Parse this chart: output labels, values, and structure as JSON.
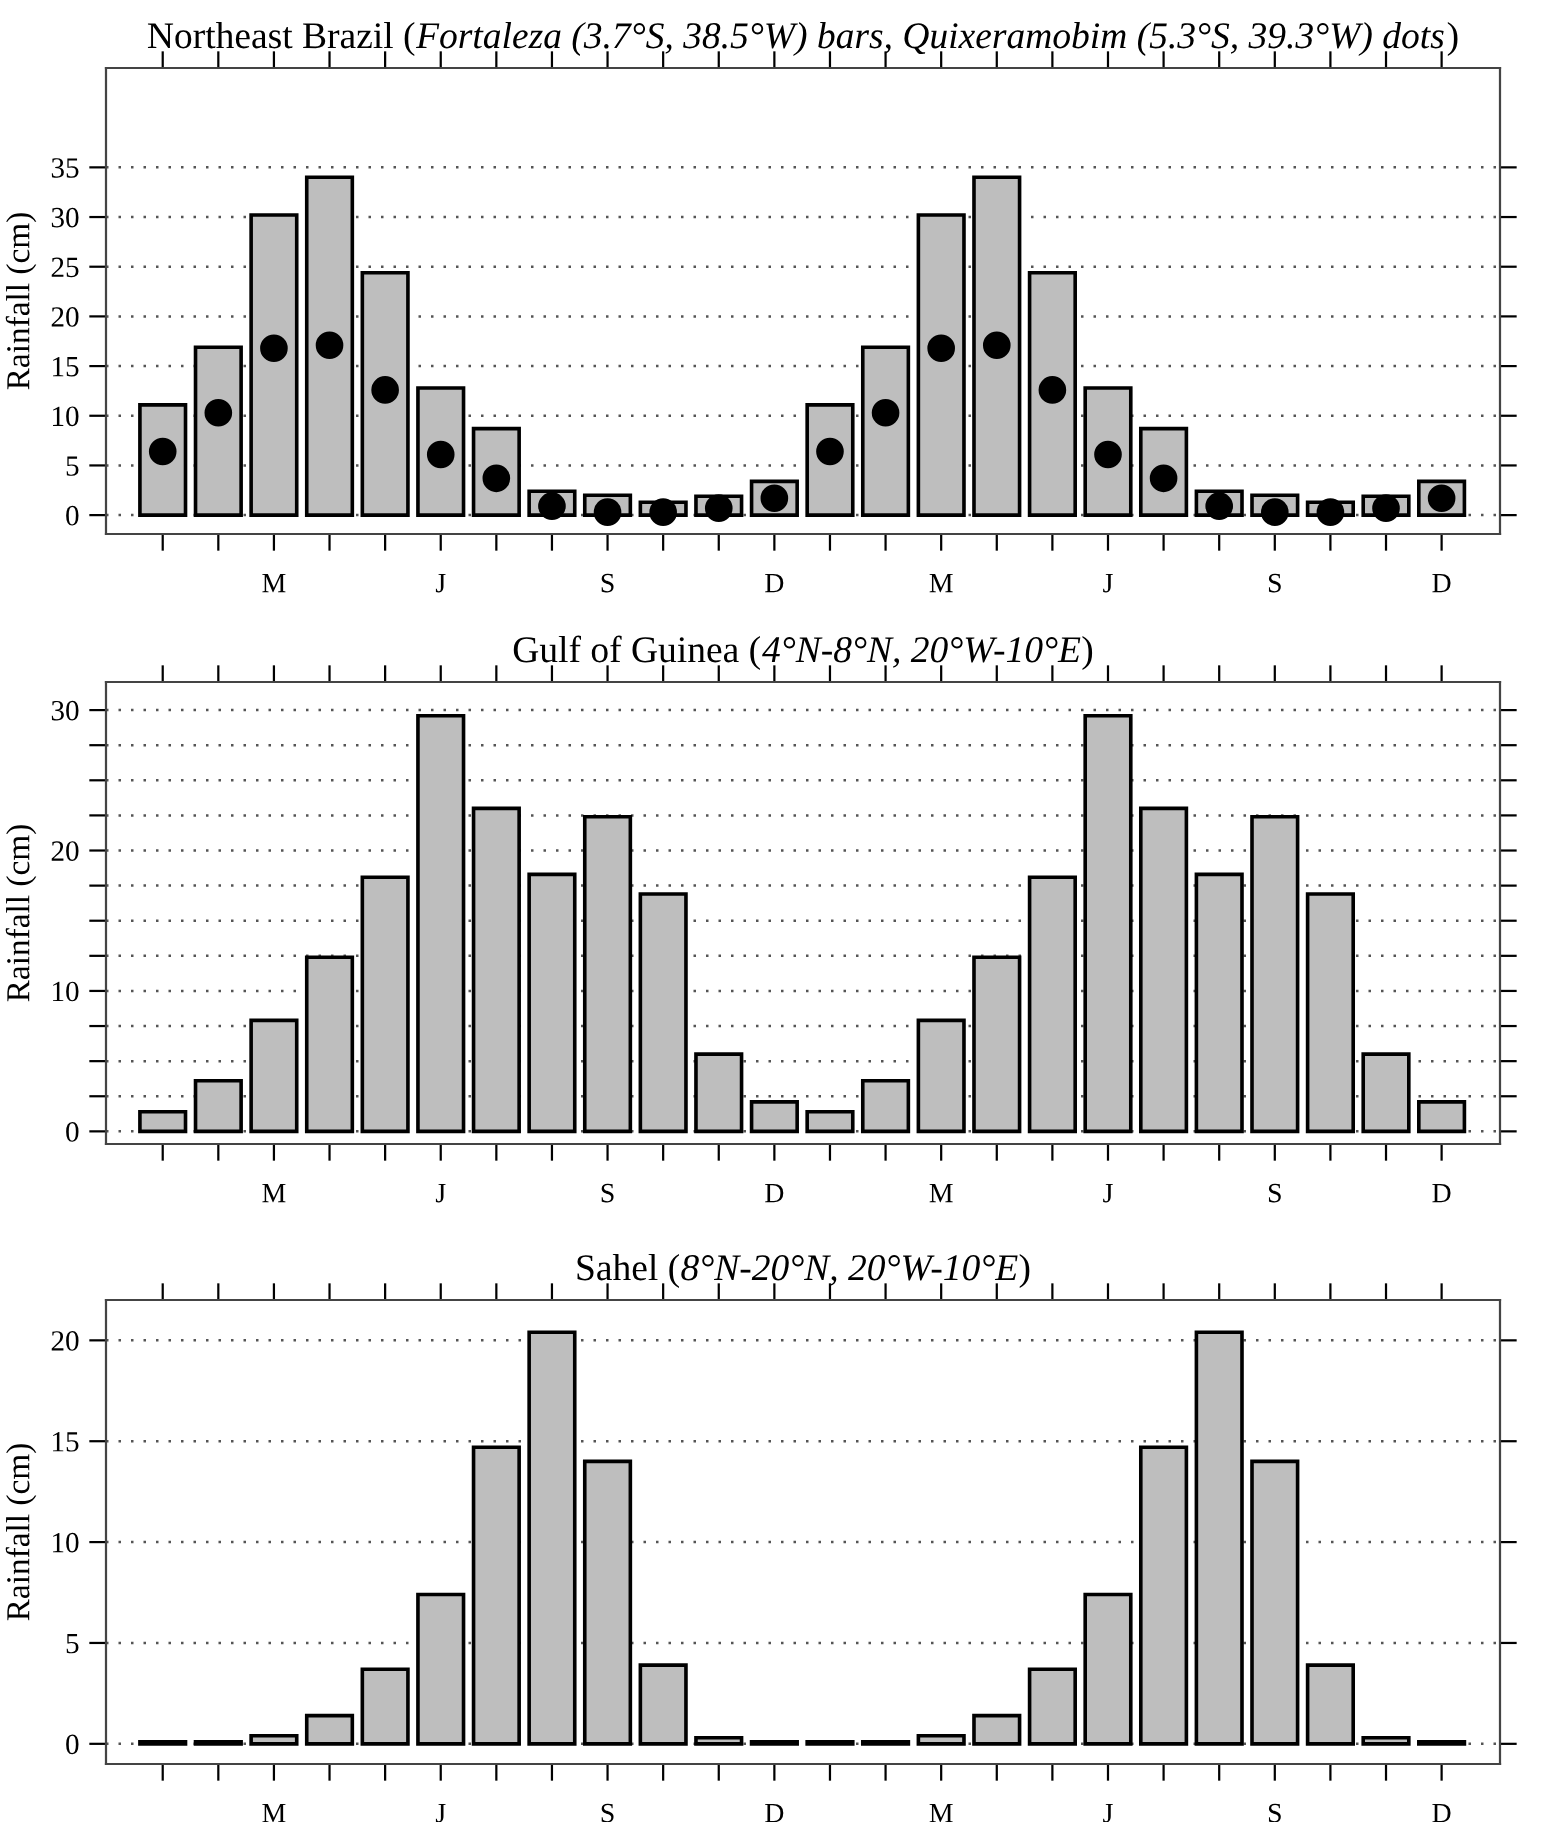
{
  "chart_data": [
    {
      "type": "bar",
      "title": "Northeast Brazil (Fortaleza (3.7°S, 38.5°W) bars, Quixeramobim (5.3°S, 39.3°W) dots)",
      "ylabel": "Rainfall (cm)",
      "categories": [
        null,
        null,
        "M",
        null,
        null,
        "J",
        null,
        null,
        "S",
        null,
        null,
        "D",
        null,
        null,
        "M",
        null,
        null,
        "J",
        null,
        null,
        "S",
        null,
        null,
        "D"
      ],
      "series": [
        {
          "color": "#bebebe",
          "values": [
            11.1,
            16.9,
            30.2,
            34.0,
            24.4,
            12.8,
            8.7,
            2.4,
            2.0,
            1.3,
            1.9,
            3.4,
            11.1,
            16.9,
            30.2,
            34.0,
            24.4,
            12.8,
            8.7,
            2.4,
            2.0,
            1.3,
            1.9,
            3.4
          ]
        },
        {
          "type": "scatter",
          "color": "#000000",
          "marker": "circle",
          "values": [
            6.4,
            10.3,
            16.8,
            17.1,
            12.6,
            6.1,
            3.7,
            0.9,
            0.3,
            0.3,
            0.7,
            1.7,
            6.4,
            10.3,
            16.8,
            17.1,
            12.6,
            6.1,
            3.7,
            0.9,
            0.3,
            0.3,
            0.7,
            1.7
          ]
        }
      ],
      "ylim": [
        -1.9,
        45
      ],
      "yticks": [
        0,
        5,
        10,
        15,
        20,
        25,
        30,
        35
      ],
      "grid": "y",
      "legend": false
    },
    {
      "type": "bar",
      "title": "Gulf of Guinea (4°N-8°N, 20°W-10°E)",
      "ylabel": "Rainfall (cm)",
      "categories": [
        null,
        null,
        "M",
        null,
        null,
        "J",
        null,
        null,
        "S",
        null,
        null,
        "D",
        null,
        null,
        "M",
        null,
        null,
        "J",
        null,
        null,
        "S",
        null,
        null,
        "D"
      ],
      "series": [
        {
          "color": "#bebebe",
          "values": [
            1.4,
            3.6,
            7.9,
            12.4,
            18.1,
            29.6,
            23.0,
            18.3,
            22.4,
            16.9,
            5.5,
            2.1,
            1.4,
            3.6,
            7.9,
            12.4,
            18.1,
            29.6,
            23.0,
            18.3,
            22.4,
            16.9,
            5.5,
            2.1
          ]
        }
      ],
      "ylim": [
        -0.9,
        32
      ],
      "yticks": [
        0,
        {
          "value": 2.5,
          "label": null
        },
        {
          "value": 5,
          "label": null
        },
        {
          "value": 7.5,
          "label": null
        },
        10,
        {
          "value": 12.5,
          "label": null
        },
        {
          "value": 15,
          "label": null
        },
        {
          "value": 17.5,
          "label": null
        },
        20,
        {
          "value": 22.5,
          "label": null
        },
        {
          "value": 25,
          "label": null
        },
        {
          "value": 27.5,
          "label": null
        },
        30
      ],
      "grid": "y",
      "legend": false
    },
    {
      "type": "bar",
      "title": "Sahel (8°N-20°N, 20°W-10°E)",
      "ylabel": "Rainfall (cm)",
      "categories": [
        null,
        null,
        "M",
        null,
        null,
        "J",
        null,
        null,
        "S",
        null,
        null,
        "D",
        null,
        null,
        "M",
        null,
        null,
        "J",
        null,
        null,
        "S",
        null,
        null,
        "D"
      ],
      "series": [
        {
          "color": "#bebebe",
          "values": [
            0.1,
            0.1,
            0.4,
            1.4,
            3.7,
            7.4,
            14.7,
            20.4,
            14.0,
            3.9,
            0.3,
            0.1,
            0.1,
            0.1,
            0.4,
            1.4,
            3.7,
            7.4,
            14.7,
            20.4,
            14.0,
            3.9,
            0.3,
            0.1
          ]
        }
      ],
      "ylim": [
        -1.0,
        22
      ],
      "yticks": [
        0,
        5,
        10,
        15,
        20
      ],
      "grid": "y",
      "legend": false
    }
  ]
}
